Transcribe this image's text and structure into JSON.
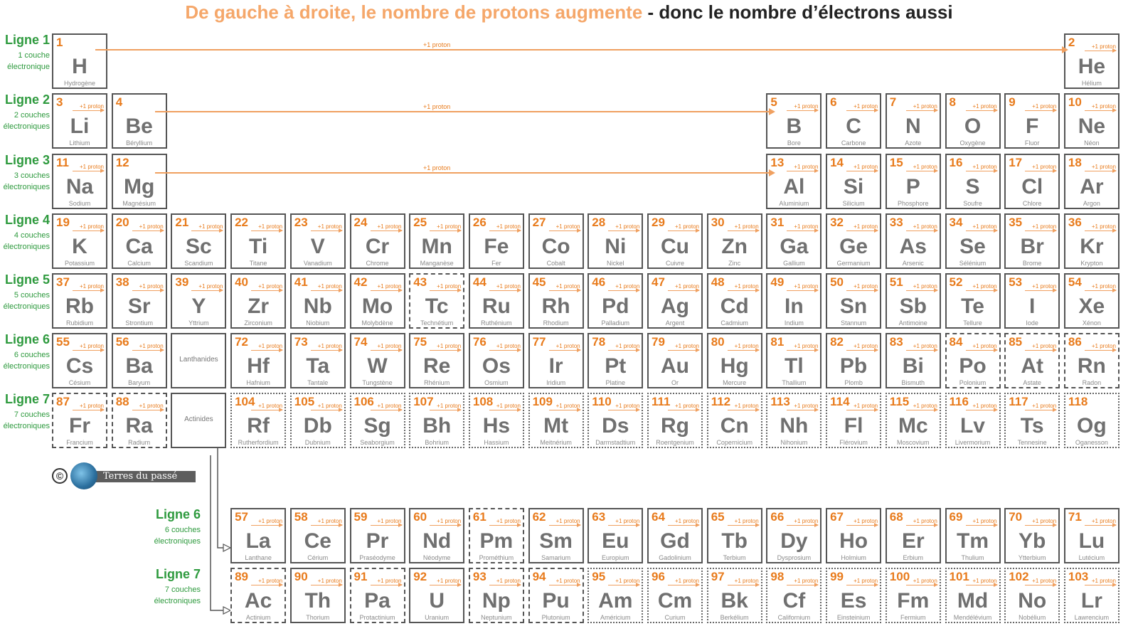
{
  "title": {
    "part1": "De gauche à droite, le nombre de protons augmente",
    "part2": " - donc le nombre d’électrons aussi"
  },
  "proton_label": "+1 proton",
  "row_labels": [
    {
      "main": "Ligne 1",
      "sub": "1 couche électronique"
    },
    {
      "main": "Ligne 2",
      "sub": "2 couches électroniques"
    },
    {
      "main": "Ligne 3",
      "sub": "3 couches électroniques"
    },
    {
      "main": "Ligne 4",
      "sub": "4 couches électroniques"
    },
    {
      "main": "Ligne 5",
      "sub": "5 couches électroniques"
    },
    {
      "main": "Ligne 6",
      "sub": "6 couches électroniques"
    },
    {
      "main": "Ligne 7",
      "sub": "7 couches électroniques"
    },
    {
      "main": "Ligne 6",
      "sub": "6 couches électroniques"
    },
    {
      "main": "Ligne 7",
      "sub": "7 couches électroniques"
    }
  ],
  "placeholders": {
    "lanthanides": "Lanthanides",
    "actinides": "Actinides"
  },
  "credit": {
    "text": "Terres du passé"
  },
  "elements": [
    {
      "n": "1",
      "s": "H",
      "name": "Hydrogène",
      "r": 1,
      "c": 1,
      "b": "solid",
      "p": false
    },
    {
      "n": "2",
      "s": "He",
      "name": "Hélium",
      "r": 1,
      "c": 18,
      "b": "solid",
      "p": true
    },
    {
      "n": "3",
      "s": "Li",
      "name": "Lithium",
      "r": 2,
      "c": 1,
      "b": "solid",
      "p": true
    },
    {
      "n": "4",
      "s": "Be",
      "name": "Béryllium",
      "r": 2,
      "c": 2,
      "b": "solid",
      "p": false
    },
    {
      "n": "5",
      "s": "B",
      "name": "Bore",
      "r": 2,
      "c": 13,
      "b": "solid",
      "p": true
    },
    {
      "n": "6",
      "s": "C",
      "name": "Carbone",
      "r": 2,
      "c": 14,
      "b": "solid",
      "p": true
    },
    {
      "n": "7",
      "s": "N",
      "name": "Azote",
      "r": 2,
      "c": 15,
      "b": "solid",
      "p": true
    },
    {
      "n": "8",
      "s": "O",
      "name": "Oxygène",
      "r": 2,
      "c": 16,
      "b": "solid",
      "p": true
    },
    {
      "n": "9",
      "s": "F",
      "name": "Fluor",
      "r": 2,
      "c": 17,
      "b": "solid",
      "p": true
    },
    {
      "n": "10",
      "s": "Ne",
      "name": "Néon",
      "r": 2,
      "c": 18,
      "b": "solid",
      "p": true
    },
    {
      "n": "11",
      "s": "Na",
      "name": "Sodium",
      "r": 3,
      "c": 1,
      "b": "solid",
      "p": true
    },
    {
      "n": "12",
      "s": "Mg",
      "name": "Magnésium",
      "r": 3,
      "c": 2,
      "b": "solid",
      "p": false
    },
    {
      "n": "13",
      "s": "Al",
      "name": "Aluminium",
      "r": 3,
      "c": 13,
      "b": "solid",
      "p": true
    },
    {
      "n": "14",
      "s": "Si",
      "name": "Silicium",
      "r": 3,
      "c": 14,
      "b": "solid",
      "p": true
    },
    {
      "n": "15",
      "s": "P",
      "name": "Phosphore",
      "r": 3,
      "c": 15,
      "b": "solid",
      "p": true
    },
    {
      "n": "16",
      "s": "S",
      "name": "Soufre",
      "r": 3,
      "c": 16,
      "b": "solid",
      "p": true
    },
    {
      "n": "17",
      "s": "Cl",
      "name": "Chlore",
      "r": 3,
      "c": 17,
      "b": "solid",
      "p": true
    },
    {
      "n": "18",
      "s": "Ar",
      "name": "Argon",
      "r": 3,
      "c": 18,
      "b": "solid",
      "p": true
    },
    {
      "n": "19",
      "s": "K",
      "name": "Potassium",
      "r": 4,
      "c": 1,
      "b": "solid",
      "p": true
    },
    {
      "n": "20",
      "s": "Ca",
      "name": "Calcium",
      "r": 4,
      "c": 2,
      "b": "solid",
      "p": true
    },
    {
      "n": "21",
      "s": "Sc",
      "name": "Scandium",
      "r": 4,
      "c": 3,
      "b": "solid",
      "p": true
    },
    {
      "n": "22",
      "s": "Ti",
      "name": "Titane",
      "r": 4,
      "c": 4,
      "b": "solid",
      "p": true
    },
    {
      "n": "23",
      "s": "V",
      "name": "Vanadium",
      "r": 4,
      "c": 5,
      "b": "solid",
      "p": true
    },
    {
      "n": "24",
      "s": "Cr",
      "name": "Chrome",
      "r": 4,
      "c": 6,
      "b": "solid",
      "p": true
    },
    {
      "n": "25",
      "s": "Mn",
      "name": "Manganèse",
      "r": 4,
      "c": 7,
      "b": "solid",
      "p": true
    },
    {
      "n": "26",
      "s": "Fe",
      "name": "Fer",
      "r": 4,
      "c": 8,
      "b": "solid",
      "p": true
    },
    {
      "n": "27",
      "s": "Co",
      "name": "Cobalt",
      "r": 4,
      "c": 9,
      "b": "solid",
      "p": true
    },
    {
      "n": "28",
      "s": "Ni",
      "name": "Nickel",
      "r": 4,
      "c": 10,
      "b": "solid",
      "p": true
    },
    {
      "n": "29",
      "s": "Cu",
      "name": "Cuivre",
      "r": 4,
      "c": 11,
      "b": "solid",
      "p": true
    },
    {
      "n": "30",
      "s": "Zn",
      "name": "Zinc",
      "r": 4,
      "c": 12,
      "b": "solid",
      "p": true
    },
    {
      "n": "31",
      "s": "Ga",
      "name": "Gallium",
      "r": 4,
      "c": 13,
      "b": "solid",
      "p": true
    },
    {
      "n": "32",
      "s": "Ge",
      "name": "Germanium",
      "r": 4,
      "c": 14,
      "b": "solid",
      "p": true
    },
    {
      "n": "33",
      "s": "As",
      "name": "Arsenic",
      "r": 4,
      "c": 15,
      "b": "solid",
      "p": true
    },
    {
      "n": "34",
      "s": "Se",
      "name": "Sélénium",
      "r": 4,
      "c": 16,
      "b": "solid",
      "p": true
    },
    {
      "n": "35",
      "s": "Br",
      "name": "Brome",
      "r": 4,
      "c": 17,
      "b": "solid",
      "p": true
    },
    {
      "n": "36",
      "s": "Kr",
      "name": "Krypton",
      "r": 4,
      "c": 18,
      "b": "solid",
      "p": true
    },
    {
      "n": "37",
      "s": "Rb",
      "name": "Rubidium",
      "r": 5,
      "c": 1,
      "b": "solid",
      "p": true
    },
    {
      "n": "38",
      "s": "Sr",
      "name": "Strontium",
      "r": 5,
      "c": 2,
      "b": "solid",
      "p": true
    },
    {
      "n": "39",
      "s": "Y",
      "name": "Yttrium",
      "r": 5,
      "c": 3,
      "b": "solid",
      "p": true
    },
    {
      "n": "40",
      "s": "Zr",
      "name": "Zirconium",
      "r": 5,
      "c": 4,
      "b": "solid",
      "p": true
    },
    {
      "n": "41",
      "s": "Nb",
      "name": "Niobium",
      "r": 5,
      "c": 5,
      "b": "solid",
      "p": true
    },
    {
      "n": "42",
      "s": "Mo",
      "name": "Molybdène",
      "r": 5,
      "c": 6,
      "b": "solid",
      "p": true
    },
    {
      "n": "43",
      "s": "Tc",
      "name": "Technétium",
      "r": 5,
      "c": 7,
      "b": "dashed",
      "p": true
    },
    {
      "n": "44",
      "s": "Ru",
      "name": "Ruthénium",
      "r": 5,
      "c": 8,
      "b": "solid",
      "p": true
    },
    {
      "n": "45",
      "s": "Rh",
      "name": "Rhodium",
      "r": 5,
      "c": 9,
      "b": "solid",
      "p": true
    },
    {
      "n": "46",
      "s": "Pd",
      "name": "Palladium",
      "r": 5,
      "c": 10,
      "b": "solid",
      "p": true
    },
    {
      "n": "47",
      "s": "Ag",
      "name": "Argent",
      "r": 5,
      "c": 11,
      "b": "solid",
      "p": true
    },
    {
      "n": "48",
      "s": "Cd",
      "name": "Cadmium",
      "r": 5,
      "c": 12,
      "b": "solid",
      "p": true
    },
    {
      "n": "49",
      "s": "In",
      "name": "Indium",
      "r": 5,
      "c": 13,
      "b": "solid",
      "p": true
    },
    {
      "n": "50",
      "s": "Sn",
      "name": "Stannum",
      "r": 5,
      "c": 14,
      "b": "solid",
      "p": true
    },
    {
      "n": "51",
      "s": "Sb",
      "name": "Antimoine",
      "r": 5,
      "c": 15,
      "b": "solid",
      "p": true
    },
    {
      "n": "52",
      "s": "Te",
      "name": "Tellure",
      "r": 5,
      "c": 16,
      "b": "solid",
      "p": true
    },
    {
      "n": "53",
      "s": "I",
      "name": "Iode",
      "r": 5,
      "c": 17,
      "b": "solid",
      "p": true
    },
    {
      "n": "54",
      "s": "Xe",
      "name": "Xénon",
      "r": 5,
      "c": 18,
      "b": "solid",
      "p": true
    },
    {
      "n": "55",
      "s": "Cs",
      "name": "Césium",
      "r": 6,
      "c": 1,
      "b": "solid",
      "p": true
    },
    {
      "n": "56",
      "s": "Ba",
      "name": "Baryum",
      "r": 6,
      "c": 2,
      "b": "solid",
      "p": true
    },
    {
      "n": "72",
      "s": "Hf",
      "name": "Hafnium",
      "r": 6,
      "c": 4,
      "b": "solid",
      "p": true
    },
    {
      "n": "73",
      "s": "Ta",
      "name": "Tantale",
      "r": 6,
      "c": 5,
      "b": "solid",
      "p": true
    },
    {
      "n": "74",
      "s": "W",
      "name": "Tungstène",
      "r": 6,
      "c": 6,
      "b": "solid",
      "p": true
    },
    {
      "n": "75",
      "s": "Re",
      "name": "Rhénium",
      "r": 6,
      "c": 7,
      "b": "solid",
      "p": true
    },
    {
      "n": "76",
      "s": "Os",
      "name": "Osmium",
      "r": 6,
      "c": 8,
      "b": "solid",
      "p": true
    },
    {
      "n": "77",
      "s": "Ir",
      "name": "Iridium",
      "r": 6,
      "c": 9,
      "b": "solid",
      "p": true
    },
    {
      "n": "78",
      "s": "Pt",
      "name": "Platine",
      "r": 6,
      "c": 10,
      "b": "solid",
      "p": true
    },
    {
      "n": "79",
      "s": "Au",
      "name": "Or",
      "r": 6,
      "c": 11,
      "b": "solid",
      "p": true
    },
    {
      "n": "80",
      "s": "Hg",
      "name": "Mercure",
      "r": 6,
      "c": 12,
      "b": "solid",
      "p": true
    },
    {
      "n": "81",
      "s": "Tl",
      "name": "Thallium",
      "r": 6,
      "c": 13,
      "b": "solid",
      "p": true
    },
    {
      "n": "82",
      "s": "Pb",
      "name": "Plomb",
      "r": 6,
      "c": 14,
      "b": "solid",
      "p": true
    },
    {
      "n": "83",
      "s": "Bi",
      "name": "Bismuth",
      "r": 6,
      "c": 15,
      "b": "solid",
      "p": true
    },
    {
      "n": "84",
      "s": "Po",
      "name": "Polonium",
      "r": 6,
      "c": 16,
      "b": "dashed",
      "p": true
    },
    {
      "n": "85",
      "s": "At",
      "name": "Astate",
      "r": 6,
      "c": 17,
      "b": "dashed",
      "p": true
    },
    {
      "n": "86",
      "s": "Rn",
      "name": "Radon",
      "r": 6,
      "c": 18,
      "b": "dashed",
      "p": true
    },
    {
      "n": "87",
      "s": "Fr",
      "name": "Francium",
      "r": 7,
      "c": 1,
      "b": "dashed",
      "p": true
    },
    {
      "n": "88",
      "s": "Ra",
      "name": "Radium",
      "r": 7,
      "c": 2,
      "b": "dashed",
      "p": true
    },
    {
      "n": "104",
      "s": "Rf",
      "name": "Rutherfordium",
      "r": 7,
      "c": 4,
      "b": "dotted",
      "p": true
    },
    {
      "n": "105",
      "s": "Db",
      "name": "Dubnium",
      "r": 7,
      "c": 5,
      "b": "dotted",
      "p": true
    },
    {
      "n": "106",
      "s": "Sg",
      "name": "Seaborgium",
      "r": 7,
      "c": 6,
      "b": "dotted",
      "p": true
    },
    {
      "n": "107",
      "s": "Bh",
      "name": "Bohrium",
      "r": 7,
      "c": 7,
      "b": "dotted",
      "p": true
    },
    {
      "n": "108",
      "s": "Hs",
      "name": "Hassium",
      "r": 7,
      "c": 8,
      "b": "dotted",
      "p": true
    },
    {
      "n": "109",
      "s": "Mt",
      "name": "Meitnérium",
      "r": 7,
      "c": 9,
      "b": "dotted",
      "p": true
    },
    {
      "n": "110",
      "s": "Ds",
      "name": "Darmstadtium",
      "r": 7,
      "c": 10,
      "b": "dotted",
      "p": true
    },
    {
      "n": "111",
      "s": "Rg",
      "name": "Roentgenium",
      "r": 7,
      "c": 11,
      "b": "dotted",
      "p": true
    },
    {
      "n": "112",
      "s": "Cn",
      "name": "Copernicium",
      "r": 7,
      "c": 12,
      "b": "dotted",
      "p": true
    },
    {
      "n": "113",
      "s": "Nh",
      "name": "Nihonium",
      "r": 7,
      "c": 13,
      "b": "dotted",
      "p": true
    },
    {
      "n": "114",
      "s": "Fl",
      "name": "Flérovium",
      "r": 7,
      "c": 14,
      "b": "dotted",
      "p": true
    },
    {
      "n": "115",
      "s": "Mc",
      "name": "Moscovium",
      "r": 7,
      "c": 15,
      "b": "dotted",
      "p": true
    },
    {
      "n": "116",
      "s": "Lv",
      "name": "Livermorium",
      "r": 7,
      "c": 16,
      "b": "dotted",
      "p": true
    },
    {
      "n": "117",
      "s": "Ts",
      "name": "Tennesine",
      "r": 7,
      "c": 17,
      "b": "dotted",
      "p": true
    },
    {
      "n": "118",
      "s": "Og",
      "name": "Oganesson",
      "r": 7,
      "c": 18,
      "b": "dotted",
      "p": false
    },
    {
      "n": "57",
      "s": "La",
      "name": "Lanthane",
      "r": 8,
      "c": 4,
      "b": "solid",
      "p": true
    },
    {
      "n": "58",
      "s": "Ce",
      "name": "Cérium",
      "r": 8,
      "c": 5,
      "b": "solid",
      "p": true
    },
    {
      "n": "59",
      "s": "Pr",
      "name": "Praséodyme",
      "r": 8,
      "c": 6,
      "b": "solid",
      "p": true
    },
    {
      "n": "60",
      "s": "Nd",
      "name": "Néodyme",
      "r": 8,
      "c": 7,
      "b": "solid",
      "p": true
    },
    {
      "n": "61",
      "s": "Pm",
      "name": "Prométhium",
      "r": 8,
      "c": 8,
      "b": "dashed",
      "p": true
    },
    {
      "n": "62",
      "s": "Sm",
      "name": "Samarium",
      "r": 8,
      "c": 9,
      "b": "solid",
      "p": true
    },
    {
      "n": "63",
      "s": "Eu",
      "name": "Europium",
      "r": 8,
      "c": 10,
      "b": "solid",
      "p": true
    },
    {
      "n": "64",
      "s": "Gd",
      "name": "Gadolinium",
      "r": 8,
      "c": 11,
      "b": "solid",
      "p": true
    },
    {
      "n": "65",
      "s": "Tb",
      "name": "Terbium",
      "r": 8,
      "c": 12,
      "b": "solid",
      "p": true
    },
    {
      "n": "66",
      "s": "Dy",
      "name": "Dysprosium",
      "r": 8,
      "c": 13,
      "b": "solid",
      "p": true
    },
    {
      "n": "67",
      "s": "Ho",
      "name": "Holmium",
      "r": 8,
      "c": 14,
      "b": "solid",
      "p": true
    },
    {
      "n": "68",
      "s": "Er",
      "name": "Erbium",
      "r": 8,
      "c": 15,
      "b": "solid",
      "p": true
    },
    {
      "n": "69",
      "s": "Tm",
      "name": "Thulium",
      "r": 8,
      "c": 16,
      "b": "solid",
      "p": true
    },
    {
      "n": "70",
      "s": "Yb",
      "name": "Ytterbium",
      "r": 8,
      "c": 17,
      "b": "solid",
      "p": true
    },
    {
      "n": "71",
      "s": "Lu",
      "name": "Lutécium",
      "r": 8,
      "c": 18,
      "b": "solid",
      "p": true
    },
    {
      "n": "89",
      "s": "Ac",
      "name": "Actinium",
      "r": 9,
      "c": 4,
      "b": "dashed",
      "p": true
    },
    {
      "n": "90",
      "s": "Th",
      "name": "Thorium",
      "r": 9,
      "c": 5,
      "b": "solid",
      "p": true
    },
    {
      "n": "91",
      "s": "Pa",
      "name": "Protactinium",
      "r": 9,
      "c": 6,
      "b": "dashed",
      "p": true
    },
    {
      "n": "92",
      "s": "U",
      "name": "Uranium",
      "r": 9,
      "c": 7,
      "b": "solid",
      "p": true
    },
    {
      "n": "93",
      "s": "Np",
      "name": "Neptunium",
      "r": 9,
      "c": 8,
      "b": "dashed",
      "p": true
    },
    {
      "n": "94",
      "s": "Pu",
      "name": "Plutonium",
      "r": 9,
      "c": 9,
      "b": "dashed",
      "p": true
    },
    {
      "n": "95",
      "s": "Am",
      "name": "Américium",
      "r": 9,
      "c": 10,
      "b": "dotted",
      "p": true
    },
    {
      "n": "96",
      "s": "Cm",
      "name": "Curium",
      "r": 9,
      "c": 11,
      "b": "dotted",
      "p": true
    },
    {
      "n": "97",
      "s": "Bk",
      "name": "Berkélium",
      "r": 9,
      "c": 12,
      "b": "dotted",
      "p": true
    },
    {
      "n": "98",
      "s": "Cf",
      "name": "Californium",
      "r": 9,
      "c": 13,
      "b": "dotted",
      "p": true
    },
    {
      "n": "99",
      "s": "Es",
      "name": "Einsteinium",
      "r": 9,
      "c": 14,
      "b": "dotted",
      "p": true
    },
    {
      "n": "100",
      "s": "Fm",
      "name": "Fermium",
      "r": 9,
      "c": 15,
      "b": "dotted",
      "p": true
    },
    {
      "n": "101",
      "s": "Md",
      "name": "Mendélévium",
      "r": 9,
      "c": 16,
      "b": "dotted",
      "p": true
    },
    {
      "n": "102",
      "s": "No",
      "name": "Nobélium",
      "r": 9,
      "c": 17,
      "b": "dotted",
      "p": true
    },
    {
      "n": "103",
      "s": "Lr",
      "name": "Lawrencium",
      "r": 9,
      "c": 18,
      "b": "dotted",
      "p": true
    }
  ]
}
